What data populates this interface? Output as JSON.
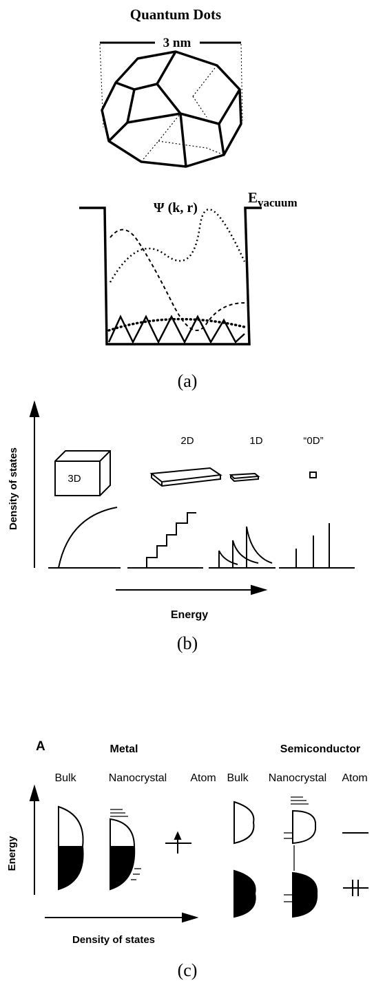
{
  "panel_a": {
    "title": "Quantum Dots",
    "size": "3 nm",
    "wavefunction": "Ψ (k, r)",
    "level": {
      "label": "E",
      "subscript": "vacuum"
    },
    "caption": "(a)"
  },
  "panel_b": {
    "y_axis": "Density of states",
    "x_axis": "Energy",
    "labels": [
      "3D",
      "2D",
      "1D",
      "“0D”"
    ],
    "caption": "(b)"
  },
  "panel_c": {
    "tag": "A",
    "groups": [
      "Metal",
      "Semiconductor"
    ],
    "columns": [
      "Bulk",
      "Nanocrystal",
      "Atom",
      "Bulk",
      "Nanocrystal",
      "Atom"
    ],
    "y_axis": "Energy",
    "x_axis": "Density of states",
    "caption": "(c)"
  }
}
